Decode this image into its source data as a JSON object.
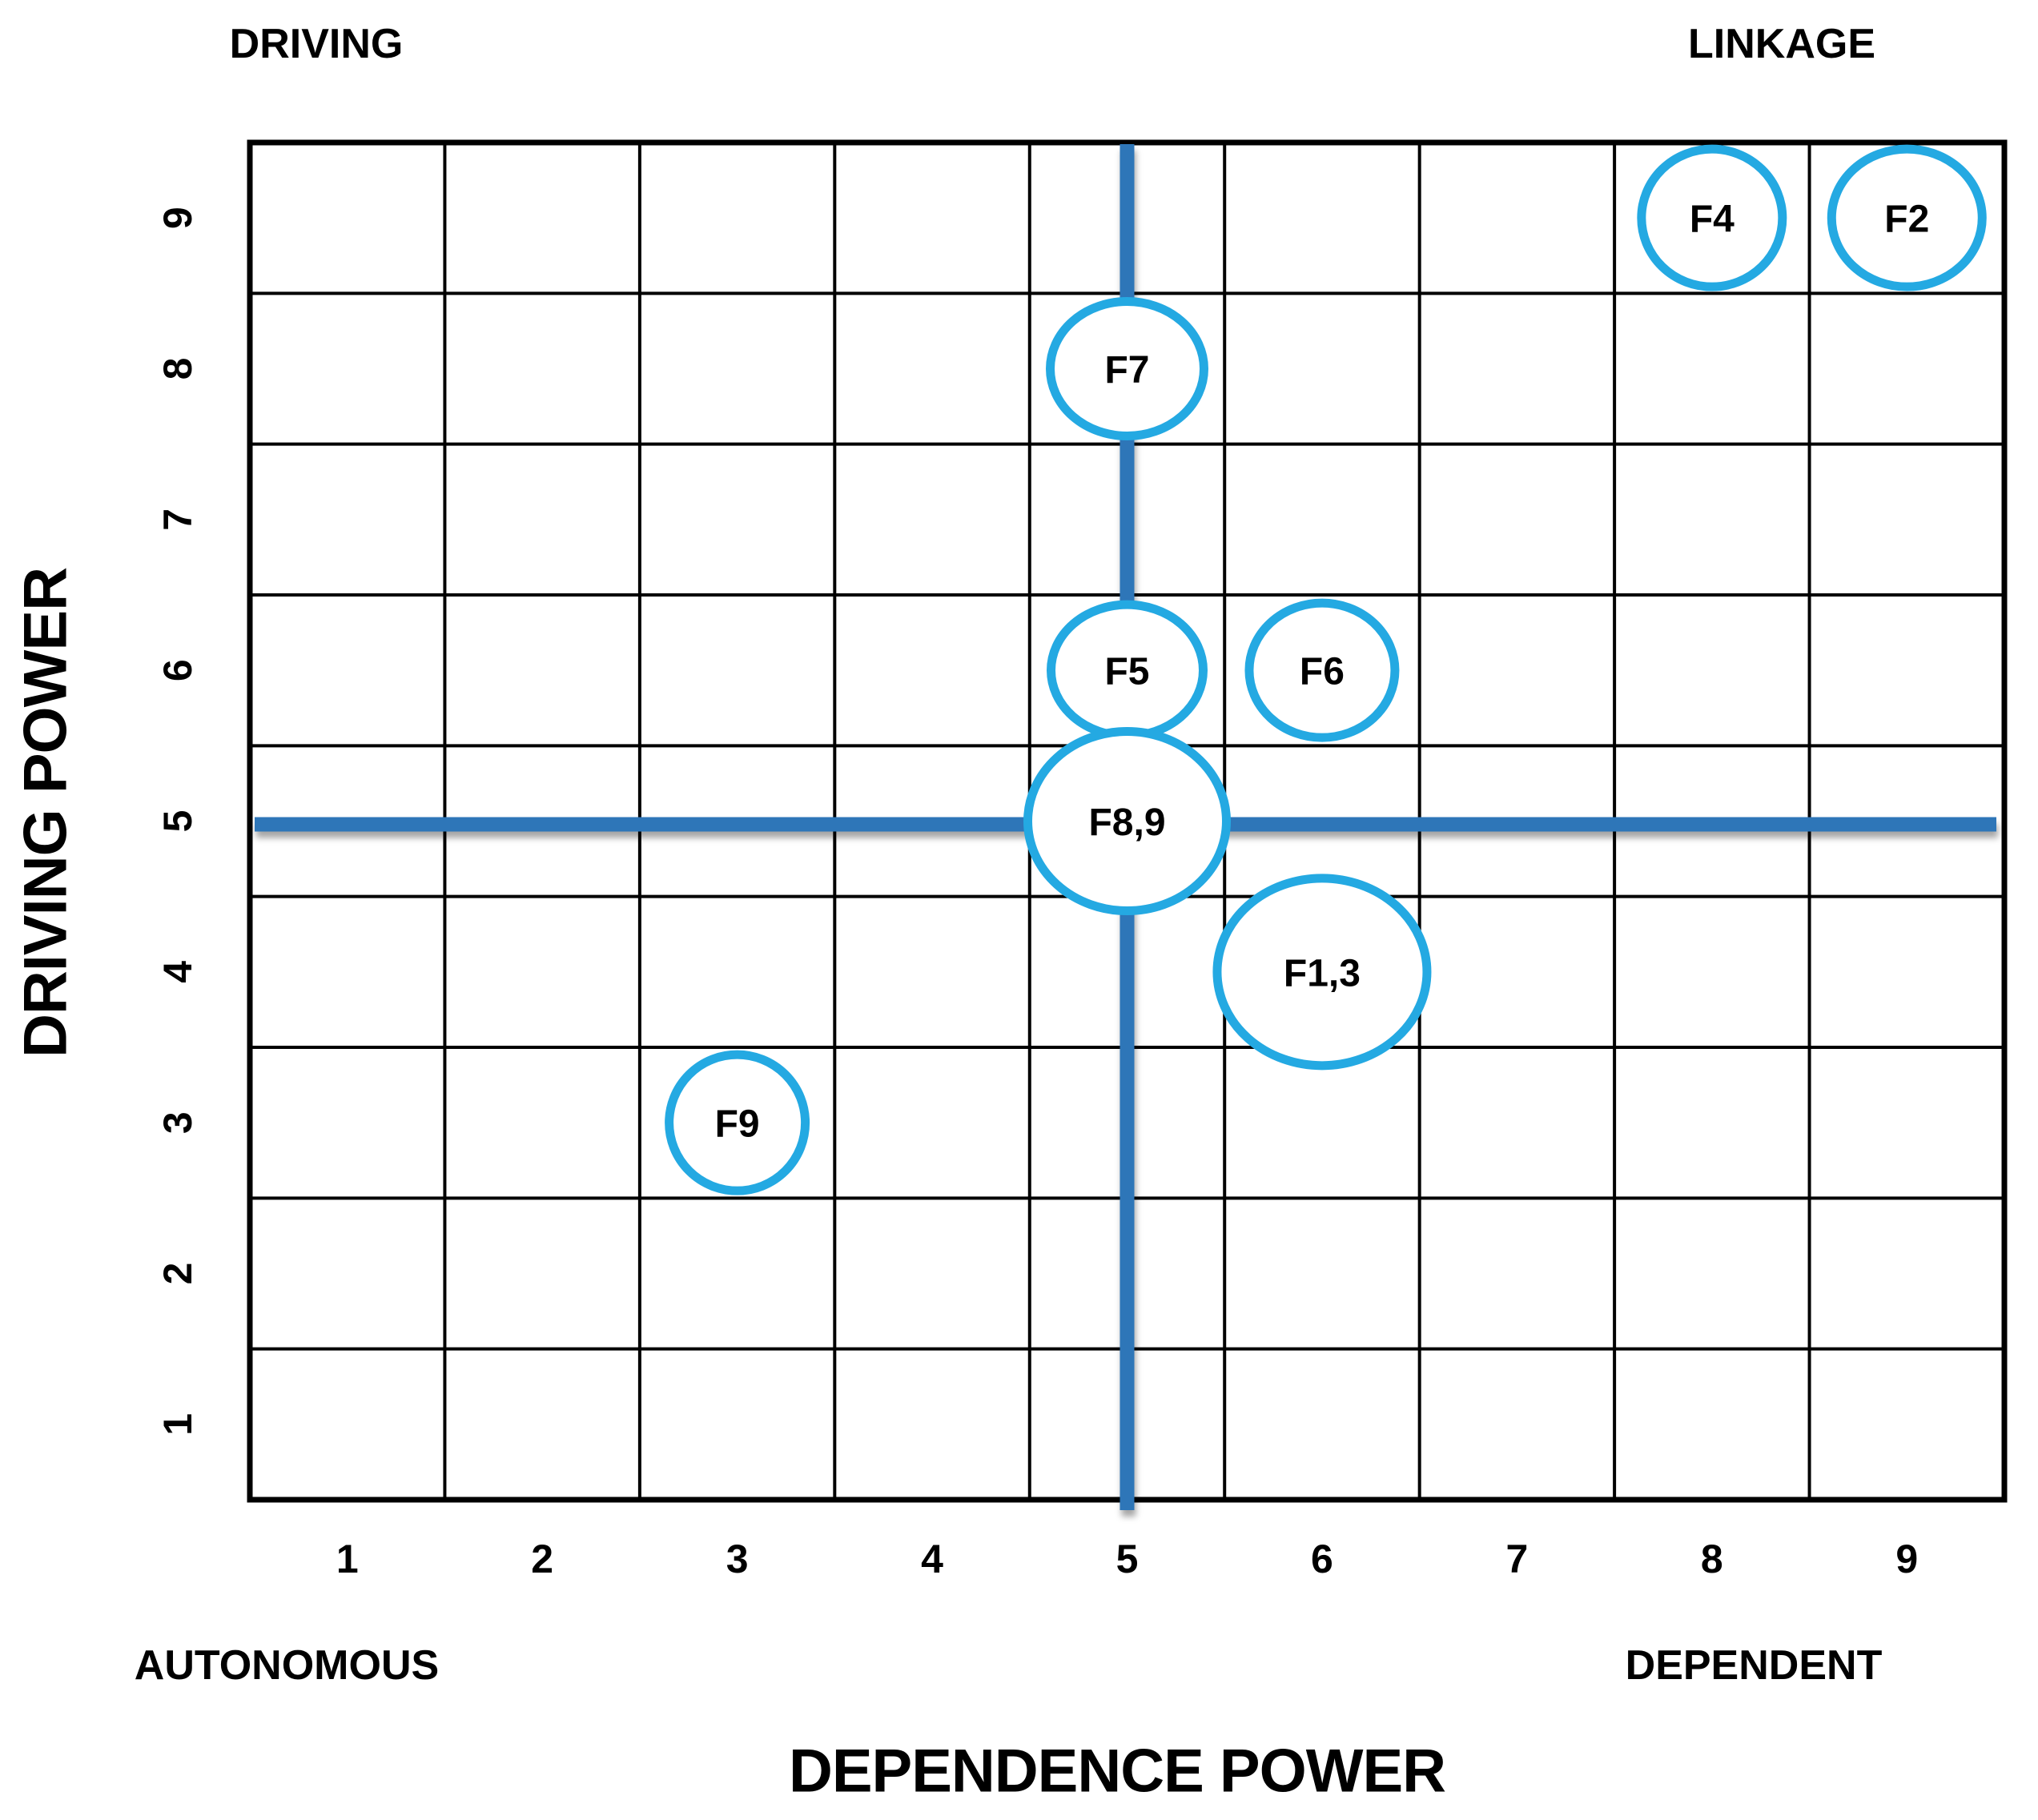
{
  "chart_data": {
    "type": "scatter",
    "title": "",
    "xlabel": "DEPENDENCE POWER",
    "ylabel": "DRIVING POWER",
    "x_ticks": [
      "1",
      "2",
      "3",
      "4",
      "5",
      "6",
      "7",
      "8",
      "9"
    ],
    "y_ticks": [
      "1",
      "2",
      "3",
      "4",
      "5",
      "6",
      "7",
      "8",
      "9"
    ],
    "xlim": [
      0.5,
      9.5
    ],
    "ylim": [
      0.5,
      9.5
    ],
    "grid": true,
    "grid_cells": 9,
    "quadrants": {
      "top_left": "DRIVING",
      "top_right": "LINKAGE",
      "bottom_left": "AUTONOMOUS",
      "bottom_right": "DEPENDENT"
    },
    "crosshair": {
      "x": 5,
      "y": 5
    },
    "points": [
      {
        "label": "F4",
        "x": 8,
        "y": 9,
        "rx": 88,
        "ry": 86
      },
      {
        "label": "F2",
        "x": 9,
        "y": 9,
        "rx": 94,
        "ry": 86
      },
      {
        "label": "F7",
        "x": 5,
        "y": 8,
        "rx": 96,
        "ry": 84
      },
      {
        "label": "F5",
        "x": 5,
        "y": 6,
        "rx": 95,
        "ry": 82
      },
      {
        "label": "F6",
        "x": 6,
        "y": 6,
        "rx": 91,
        "ry": 84
      },
      {
        "label": "F9",
        "x": 3,
        "y": 3,
        "rx": 85,
        "ry": 85
      },
      {
        "label": "F8,9",
        "x": 5,
        "y": 5,
        "rx": 124,
        "ry": 112
      },
      {
        "label": "F1,3",
        "x": 6,
        "y": 4,
        "rx": 131,
        "ry": 117
      }
    ],
    "colors": {
      "circle_stroke": "#24A9E2",
      "circle_fill": "#FFFFFF",
      "crosshair": "#2E76B8",
      "grid_line": "#000000",
      "text": "#000000",
      "background": "#FFFFFF"
    }
  }
}
